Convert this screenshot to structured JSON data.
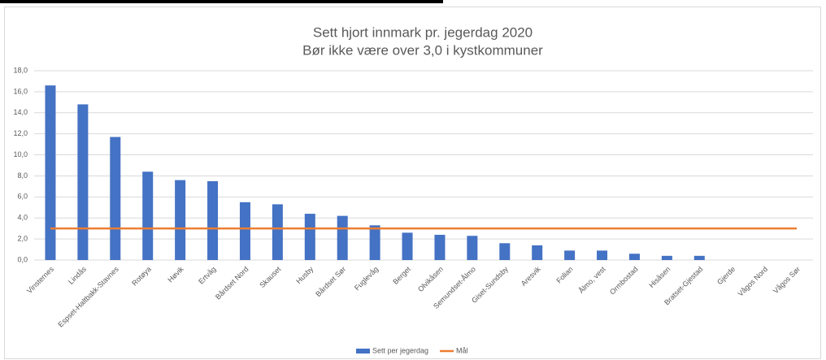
{
  "chart_data": {
    "type": "bar",
    "title": "Sett hjort innmark pr. jegerdag 2020",
    "subtitle": "Bør ikke være over 3,0 i kystkommuner",
    "categories": [
      "Vinsternes",
      "Lindås",
      "Espset-Haltbakk-Stavnes",
      "Rotøya",
      "Høvik",
      "Ertvåg",
      "Bårdset Nord",
      "Skauset",
      "Husby",
      "Bårdset Sør",
      "Fuglevåg",
      "Berget",
      "Olvikåsen",
      "Semundset-Ålmo",
      "Giset-Sundsby",
      "Aresvik",
      "Folian",
      "Ålmo, vest",
      "Ormbostad",
      "Hisåsen",
      "Bratset-Gjestad",
      "Gjerde",
      "Vågos Nord",
      "Vågos Sør"
    ],
    "series": [
      {
        "name": "Sett per jegerdag",
        "type": "bar",
        "color": "#4472c4",
        "values": [
          16.6,
          14.8,
          11.7,
          8.4,
          7.6,
          7.5,
          5.5,
          5.3,
          4.4,
          4.2,
          3.3,
          2.6,
          2.4,
          2.3,
          1.6,
          1.4,
          0.9,
          0.9,
          0.6,
          0.4,
          0.4,
          0,
          0,
          0
        ]
      },
      {
        "name": "Mål",
        "type": "line",
        "color": "#ed7d31",
        "values": [
          3.0,
          3.0,
          3.0,
          3.0,
          3.0,
          3.0,
          3.0,
          3.0,
          3.0,
          3.0,
          3.0,
          3.0,
          3.0,
          3.0,
          3.0,
          3.0,
          3.0,
          3.0,
          3.0,
          3.0,
          3.0,
          3.0,
          3.0,
          3.0
        ]
      }
    ],
    "ylim": [
      0,
      18
    ],
    "yticks": [
      {
        "value": 0,
        "label": "0,0"
      },
      {
        "value": 2,
        "label": "2,0"
      },
      {
        "value": 4,
        "label": "4,0"
      },
      {
        "value": 6,
        "label": "6,0"
      },
      {
        "value": 8,
        "label": "8,0"
      },
      {
        "value": 10,
        "label": "10,0"
      },
      {
        "value": 12,
        "label": "12,0"
      },
      {
        "value": 14,
        "label": "14,0"
      },
      {
        "value": 16,
        "label": "16,0"
      },
      {
        "value": 18,
        "label": "18,0"
      }
    ],
    "grid": true,
    "legend": "bottom"
  }
}
